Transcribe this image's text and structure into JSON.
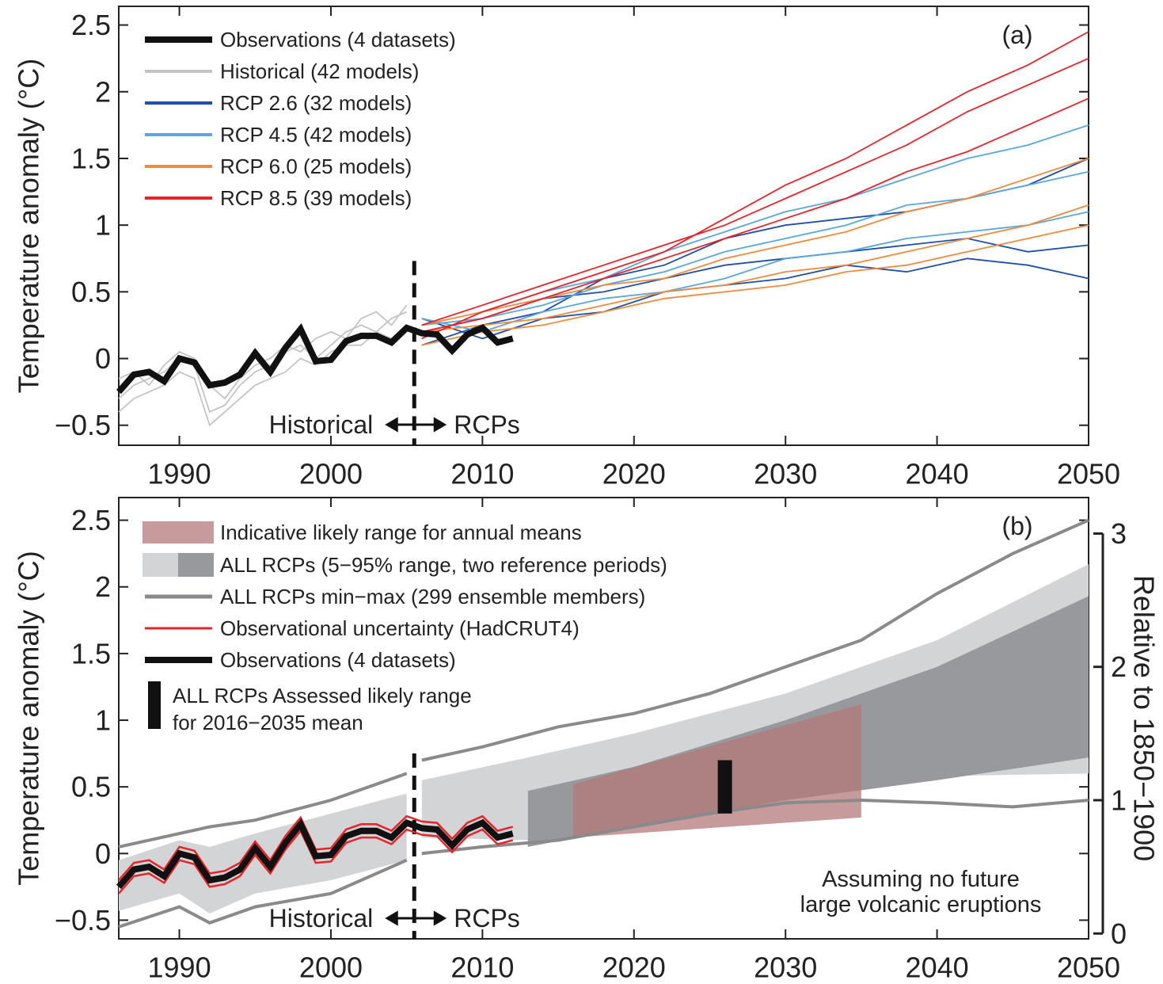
{
  "chart_data": [
    {
      "type": "line",
      "panel": "(a)",
      "y_label": "Temperature anomaly (°C)",
      "xlim": [
        1986,
        2050
      ],
      "ylim": [
        -0.65,
        2.64
      ],
      "xticks": [
        1990,
        2000,
        2010,
        2020,
        2030,
        2040,
        2050
      ],
      "yticks": [
        {
          "value": -0.5,
          "label": "−0.5"
        },
        0,
        0.5,
        1,
        1.5,
        2,
        2.5
      ],
      "divider": 2005.5,
      "annotations": [
        "Historical",
        "RCPs"
      ],
      "series": [
        {
          "name": "Observations (4 datasets)",
          "color": "#111111",
          "x": [
            1986,
            1987,
            1988,
            1989,
            1990,
            1991,
            1992,
            1993,
            1994,
            1995,
            1996,
            1997,
            1998,
            1999,
            2000,
            2001,
            2002,
            2003,
            2004,
            2005,
            2006,
            2007,
            2008,
            2009,
            2010,
            2011,
            2012
          ],
          "values": [
            -0.25,
            -0.12,
            -0.1,
            -0.17,
            0.0,
            -0.03,
            -0.2,
            -0.18,
            -0.12,
            0.04,
            -0.1,
            0.08,
            0.22,
            -0.02,
            -0.01,
            0.13,
            0.17,
            0.17,
            0.12,
            0.23,
            0.19,
            0.18,
            0.06,
            0.18,
            0.23,
            0.12,
            0.15
          ]
        },
        {
          "name": "Historical (42 models)",
          "color": "#c4c4c4",
          "x": [
            1986,
            1987,
            1988,
            1989,
            1990,
            1991,
            1992,
            1993,
            1994,
            1995,
            1996,
            1997,
            1998,
            1999,
            2000,
            2001,
            2002,
            2003,
            2004,
            2005
          ],
          "members": [
            [
              -0.3,
              -0.2,
              -0.15,
              -0.1,
              0.0,
              -0.05,
              -0.4,
              -0.35,
              -0.2,
              -0.1,
              -0.05,
              0.05,
              0.1,
              0.0,
              0.1,
              0.2,
              0.25,
              0.2,
              0.3,
              0.35
            ],
            [
              -0.15,
              -0.1,
              -0.2,
              -0.05,
              0.05,
              0.0,
              -0.2,
              -0.3,
              -0.15,
              -0.05,
              0.0,
              0.1,
              0.05,
              0.15,
              0.2,
              0.15,
              0.3,
              0.35,
              0.25,
              0.4
            ],
            [
              -0.4,
              -0.3,
              -0.25,
              -0.2,
              -0.1,
              -0.15,
              -0.5,
              -0.4,
              -0.3,
              -0.2,
              -0.15,
              -0.1,
              0.0,
              -0.05,
              0.05,
              0.1,
              0.1,
              0.2,
              0.15,
              0.25
            ]
          ]
        },
        {
          "name": "RCP 2.6 (32 models)",
          "color": "#1f4fa8",
          "x": [
            2006,
            2010,
            2014,
            2018,
            2022,
            2026,
            2030,
            2034,
            2038,
            2042,
            2046,
            2050
          ],
          "members": [
            [
              0.2,
              0.3,
              0.45,
              0.5,
              0.6,
              0.7,
              0.75,
              0.8,
              0.85,
              0.9,
              0.8,
              0.85
            ],
            [
              0.1,
              0.25,
              0.35,
              0.6,
              0.7,
              0.9,
              1.0,
              1.05,
              1.1,
              1.2,
              1.3,
              1.5
            ],
            [
              0.3,
              0.15,
              0.3,
              0.35,
              0.5,
              0.55,
              0.6,
              0.7,
              0.65,
              0.75,
              0.7,
              0.6
            ]
          ]
        },
        {
          "name": "RCP 4.5 (42 models)",
          "color": "#5aa6e0",
          "x": [
            2006,
            2010,
            2014,
            2018,
            2022,
            2026,
            2030,
            2034,
            2038,
            2042,
            2046,
            2050
          ],
          "members": [
            [
              0.25,
              0.3,
              0.4,
              0.55,
              0.65,
              0.8,
              0.9,
              1.0,
              1.15,
              1.2,
              1.3,
              1.4
            ],
            [
              0.15,
              0.35,
              0.5,
              0.6,
              0.8,
              0.95,
              1.1,
              1.2,
              1.35,
              1.5,
              1.6,
              1.75
            ],
            [
              0.3,
              0.2,
              0.35,
              0.45,
              0.5,
              0.6,
              0.75,
              0.8,
              0.9,
              0.95,
              1.0,
              1.1
            ]
          ]
        },
        {
          "name": "RCP 6.0 (25 models)",
          "color": "#f08a3c",
          "x": [
            2006,
            2010,
            2014,
            2018,
            2022,
            2026,
            2030,
            2034,
            2038,
            2042,
            2046,
            2050
          ],
          "members": [
            [
              0.2,
              0.25,
              0.3,
              0.4,
              0.5,
              0.55,
              0.65,
              0.7,
              0.8,
              0.9,
              1.0,
              1.15
            ],
            [
              0.1,
              0.2,
              0.25,
              0.35,
              0.45,
              0.5,
              0.55,
              0.65,
              0.7,
              0.8,
              0.9,
              1.0
            ],
            [
              0.25,
              0.35,
              0.45,
              0.55,
              0.6,
              0.75,
              0.85,
              0.95,
              1.1,
              1.2,
              1.35,
              1.5
            ]
          ]
        },
        {
          "name": "RCP 8.5 (39 models)",
          "color": "#e8232a",
          "x": [
            2006,
            2010,
            2014,
            2018,
            2022,
            2026,
            2030,
            2034,
            2038,
            2042,
            2046,
            2050
          ],
          "members": [
            [
              0.25,
              0.4,
              0.55,
              0.7,
              0.85,
              1.0,
              1.2,
              1.4,
              1.6,
              1.85,
              2.05,
              2.25
            ],
            [
              0.2,
              0.3,
              0.45,
              0.6,
              0.75,
              0.9,
              1.05,
              1.2,
              1.4,
              1.55,
              1.75,
              1.95
            ],
            [
              0.15,
              0.35,
              0.5,
              0.65,
              0.8,
              1.05,
              1.3,
              1.5,
              1.75,
              2.0,
              2.2,
              2.45
            ]
          ]
        }
      ]
    },
    {
      "type": "range",
      "panel": "(b)",
      "y_label": "Temperature anomaly (°C)",
      "y2_label": "Relative to 1850−1900",
      "xlim": [
        1986,
        2050
      ],
      "ylim": [
        -0.64,
        2.67
      ],
      "y2lim": [
        -0.04,
        3.27
      ],
      "xticks": [
        1990,
        2000,
        2010,
        2020,
        2030,
        2040,
        2050
      ],
      "yticks": [
        {
          "value": -0.5,
          "label": "−0.5"
        },
        0,
        0.5,
        1,
        1.5,
        2,
        2.5
      ],
      "y2ticks": [
        0,
        1,
        2,
        3
      ],
      "divider": 2005.5,
      "annotations": [
        "Historical",
        "RCPs",
        "Assuming no future",
        "large volcanic eruptions"
      ],
      "likely_annual": {
        "name": "Indicative likely range for annual means",
        "color": "#b47a7a",
        "x": [
          2016,
          2035
        ],
        "lower": [
          0.12,
          0.27
        ],
        "upper": [
          0.52,
          1.12
        ]
      },
      "range_5_95": {
        "name": "ALL RCPs (5−95% range, two reference periods)",
        "colors": [
          "#d3d4d6",
          "#97999c"
        ],
        "light": {
          "x": [
            1986,
            1990,
            1992,
            1995,
            2000,
            2005,
            2005.5,
            2006,
            2013,
            2020,
            2030,
            2040,
            2050
          ],
          "lower": [
            -0.43,
            -0.3,
            -0.45,
            -0.3,
            -0.2,
            -0.05,
            null,
            0.12,
            0.1,
            0.3,
            0.5,
            0.58,
            0.6
          ],
          "upper": [
            -0.05,
            0.1,
            0.05,
            0.15,
            0.3,
            0.45,
            null,
            0.55,
            0.72,
            0.9,
            1.2,
            1.6,
            2.17
          ]
        },
        "dark": {
          "x": [
            2013,
            2020,
            2030,
            2040,
            2050
          ],
          "lower": [
            0.05,
            0.2,
            0.4,
            0.55,
            0.72
          ],
          "upper": [
            0.47,
            0.65,
            1.0,
            1.4,
            1.93
          ]
        }
      },
      "min_max": {
        "name": "ALL RCPs min−max (299 ensemble members)",
        "color": "#8a8a8a",
        "x": [
          1986,
          1990,
          1992,
          1995,
          2000,
          2005,
          2005.5,
          2006,
          2010,
          2015,
          2020,
          2025,
          2030,
          2035,
          2040,
          2045,
          2050
        ],
        "upper": [
          0.05,
          0.15,
          0.2,
          0.25,
          0.4,
          0.6,
          null,
          0.7,
          0.8,
          0.95,
          1.05,
          1.2,
          1.4,
          1.6,
          1.95,
          2.25,
          2.5
        ],
        "lower": [
          -0.55,
          -0.4,
          -0.52,
          -0.4,
          -0.3,
          -0.05,
          null,
          0.0,
          0.05,
          0.1,
          0.2,
          0.3,
          0.38,
          0.4,
          0.38,
          0.35,
          0.4
        ]
      },
      "obs_uncertainty": {
        "name": "Observational uncertainty (HadCRUT4)",
        "color": "#e8232a",
        "x": [
          1986,
          1987,
          1988,
          1989,
          1990,
          1991,
          1992,
          1993,
          1994,
          1995,
          1996,
          1997,
          1998,
          1999,
          2000,
          2001,
          2002,
          2003,
          2004,
          2005,
          2006,
          2007,
          2008,
          2009,
          2010,
          2011,
          2012
        ],
        "upper": [
          -0.2,
          -0.07,
          -0.05,
          -0.12,
          0.05,
          0.02,
          -0.15,
          -0.13,
          -0.07,
          0.09,
          -0.05,
          0.13,
          0.27,
          0.03,
          0.04,
          0.18,
          0.22,
          0.22,
          0.17,
          0.28,
          0.24,
          0.23,
          0.11,
          0.23,
          0.28,
          0.17,
          0.2
        ],
        "lower": [
          -0.3,
          -0.17,
          -0.15,
          -0.22,
          -0.05,
          -0.08,
          -0.25,
          -0.23,
          -0.17,
          -0.01,
          -0.15,
          0.03,
          0.17,
          -0.07,
          -0.06,
          0.08,
          0.12,
          0.12,
          0.07,
          0.18,
          0.14,
          0.13,
          0.01,
          0.13,
          0.18,
          0.07,
          0.1
        ]
      },
      "observations": {
        "name": "Observations (4 datasets)",
        "color": "#111111",
        "x": [
          1986,
          1987,
          1988,
          1989,
          1990,
          1991,
          1992,
          1993,
          1994,
          1995,
          1996,
          1997,
          1998,
          1999,
          2000,
          2001,
          2002,
          2003,
          2004,
          2005,
          2006,
          2007,
          2008,
          2009,
          2010,
          2011,
          2012
        ],
        "values": [
          -0.25,
          -0.12,
          -0.1,
          -0.17,
          0.0,
          -0.03,
          -0.2,
          -0.18,
          -0.12,
          0.04,
          -0.1,
          0.08,
          0.22,
          -0.02,
          -0.01,
          0.13,
          0.17,
          0.17,
          0.12,
          0.23,
          0.19,
          0.18,
          0.06,
          0.18,
          0.23,
          0.12,
          0.15
        ]
      },
      "likely_bar": {
        "name": [
          "ALL RCPs Assessed likely range",
          "for 2016−2035 mean"
        ],
        "color": "#111111",
        "x": 2026,
        "range": [
          0.3,
          0.7
        ]
      }
    }
  ]
}
